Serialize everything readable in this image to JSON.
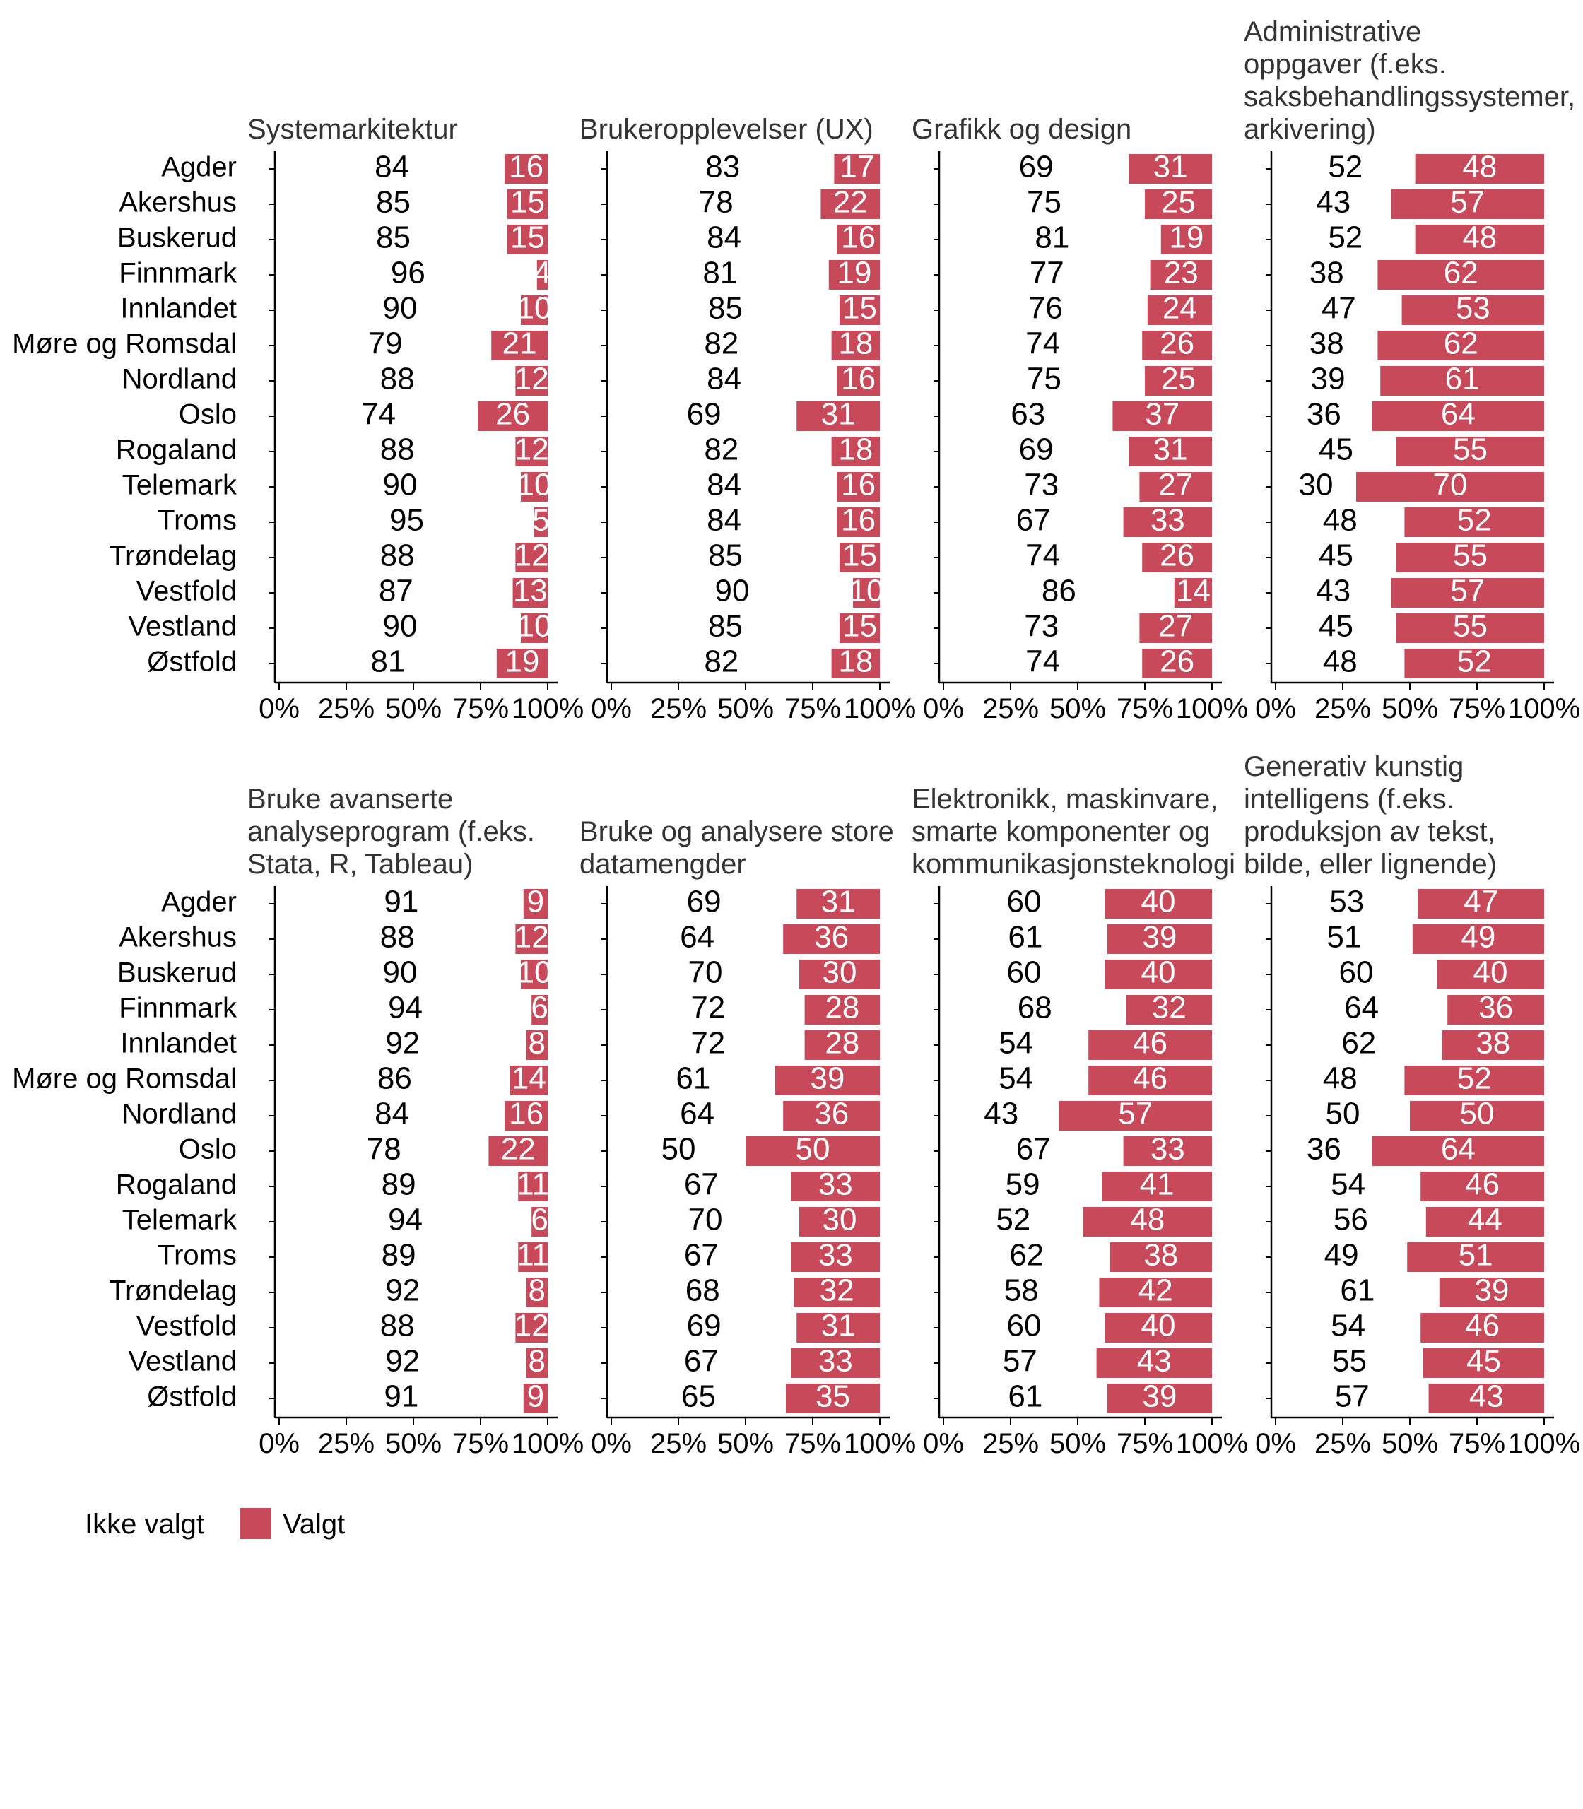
{
  "chart_data": {
    "type": "bar",
    "orientation": "horizontal-stacked-percent",
    "categories": [
      "Agder",
      "Akershus",
      "Buskerud",
      "Finnmark",
      "Innlandet",
      "Møre og Romsdal",
      "Nordland",
      "Oslo",
      "Rogaland",
      "Telemark",
      "Troms",
      "Trøndelag",
      "Vestfold",
      "Vestland",
      "Østfold"
    ],
    "xlim": [
      0,
      100
    ],
    "xticks": [
      "0%",
      "25%",
      "50%",
      "75%",
      "100%"
    ],
    "legend": {
      "position": "bottom-left",
      "entries": [
        "Ikke valgt",
        "Valgt"
      ]
    },
    "colors": {
      "Valgt": "#C84A5A",
      "Ikke valgt": "#FFFFFF"
    },
    "facets": [
      {
        "title_lines": [
          "Systemarkitektur"
        ],
        "ikke_valgt": [
          84,
          85,
          85,
          96,
          90,
          79,
          88,
          74,
          88,
          90,
          95,
          88,
          87,
          90,
          81
        ],
        "valgt": [
          16,
          15,
          15,
          4,
          10,
          21,
          12,
          26,
          12,
          10,
          5,
          12,
          13,
          10,
          19
        ]
      },
      {
        "title_lines": [
          "Brukeropplevelser (UX)"
        ],
        "ikke_valgt": [
          83,
          78,
          84,
          81,
          85,
          82,
          84,
          69,
          82,
          84,
          84,
          85,
          90,
          85,
          82
        ],
        "valgt": [
          17,
          22,
          16,
          19,
          15,
          18,
          16,
          31,
          18,
          16,
          16,
          15,
          10,
          15,
          18
        ]
      },
      {
        "title_lines": [
          "Grafikk og design"
        ],
        "ikke_valgt": [
          69,
          75,
          81,
          77,
          76,
          74,
          75,
          63,
          69,
          73,
          67,
          74,
          86,
          73,
          74
        ],
        "valgt": [
          31,
          25,
          19,
          23,
          24,
          26,
          25,
          37,
          31,
          27,
          33,
          26,
          14,
          27,
          26
        ]
      },
      {
        "title_lines": [
          "Administrative",
          "oppgaver (f.eks.",
          "saksbehandlingssystemer,",
          "arkivering)"
        ],
        "ikke_valgt": [
          52,
          43,
          52,
          38,
          47,
          38,
          39,
          36,
          45,
          30,
          48,
          45,
          43,
          45,
          48
        ],
        "valgt": [
          48,
          57,
          48,
          62,
          53,
          62,
          61,
          64,
          55,
          70,
          52,
          55,
          57,
          55,
          52
        ]
      },
      {
        "title_lines": [
          "Bruke avanserte",
          "analyseprogram (f.eks.",
          "Stata, R, Tableau)"
        ],
        "ikke_valgt": [
          91,
          88,
          90,
          94,
          92,
          86,
          84,
          78,
          89,
          94,
          89,
          92,
          88,
          92,
          91
        ],
        "valgt": [
          9,
          12,
          10,
          6,
          8,
          14,
          16,
          22,
          11,
          6,
          11,
          8,
          12,
          8,
          9
        ]
      },
      {
        "title_lines": [
          "Bruke og analysere store",
          "datamengder"
        ],
        "ikke_valgt": [
          69,
          64,
          70,
          72,
          72,
          61,
          64,
          50,
          67,
          70,
          67,
          68,
          69,
          67,
          65
        ],
        "valgt": [
          31,
          36,
          30,
          28,
          28,
          39,
          36,
          50,
          33,
          30,
          33,
          32,
          31,
          33,
          35
        ]
      },
      {
        "title_lines": [
          "Elektronikk, maskinvare,",
          "smarte komponenter og",
          "kommunikasjonsteknologi"
        ],
        "ikke_valgt": [
          60,
          61,
          60,
          68,
          54,
          54,
          43,
          67,
          59,
          52,
          62,
          58,
          60,
          57,
          61
        ],
        "valgt": [
          40,
          39,
          40,
          32,
          46,
          46,
          57,
          33,
          41,
          48,
          38,
          42,
          40,
          43,
          39
        ]
      },
      {
        "title_lines": [
          "Generativ kunstig",
          "intelligens (f.eks.",
          "produksjon av tekst,",
          "bilde, eller lignende)"
        ],
        "ikke_valgt": [
          53,
          51,
          60,
          64,
          62,
          48,
          50,
          36,
          54,
          56,
          49,
          61,
          54,
          55,
          57
        ],
        "valgt": [
          47,
          49,
          40,
          36,
          38,
          52,
          50,
          64,
          46,
          44,
          51,
          39,
          46,
          45,
          43
        ]
      }
    ]
  }
}
